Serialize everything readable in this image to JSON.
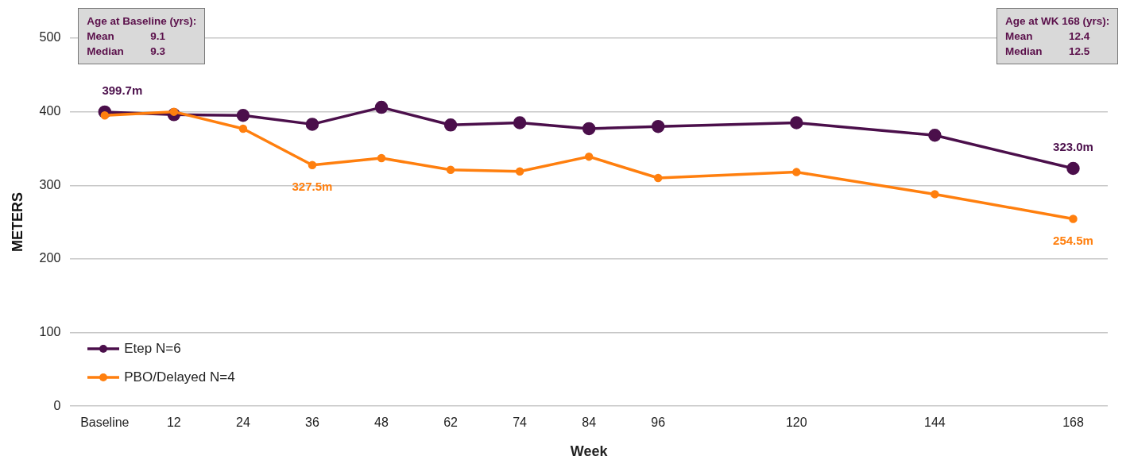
{
  "chart_data": {
    "type": "line",
    "xlabel": "Week",
    "ylabel": "METERS",
    "categories": [
      "Baseline",
      "12",
      "24",
      "36",
      "48",
      "62",
      "74",
      "84",
      "96",
      null,
      "120",
      null,
      "144",
      null,
      "168"
    ],
    "series": [
      {
        "name": "Etep N=6",
        "color": "#4b0f4b",
        "values": [
          399.7,
          396,
          395,
          383,
          406,
          382,
          385,
          377,
          380,
          null,
          385,
          null,
          368,
          null,
          323.0
        ],
        "value_labels": [
          "399.7m",
          null,
          null,
          null,
          null,
          null,
          null,
          null,
          null,
          null,
          null,
          null,
          null,
          null,
          "323.0m"
        ]
      },
      {
        "name": "PBO/Delayed N=4",
        "color": "#ff7f0e",
        "values": [
          395,
          400,
          377,
          327.5,
          337,
          321,
          319,
          339,
          310,
          null,
          318,
          null,
          288,
          null,
          254.5
        ],
        "value_labels": [
          null,
          null,
          null,
          "327.5m",
          null,
          null,
          null,
          null,
          null,
          null,
          null,
          null,
          null,
          null,
          "254.5m"
        ]
      }
    ],
    "ylim": [
      0,
      500
    ],
    "yticks": [
      0,
      100,
      200,
      300,
      400,
      500
    ],
    "grid": "y",
    "legend": "bottom left",
    "marker": "circle",
    "line_style": "solid",
    "annotations": [
      "Age at Baseline (yrs):\nMean\t9.1\nMedian\t9.3",
      "Age at WK 168 (yrs):\nMean\t12.4\nMedian\t12.5"
    ]
  }
}
